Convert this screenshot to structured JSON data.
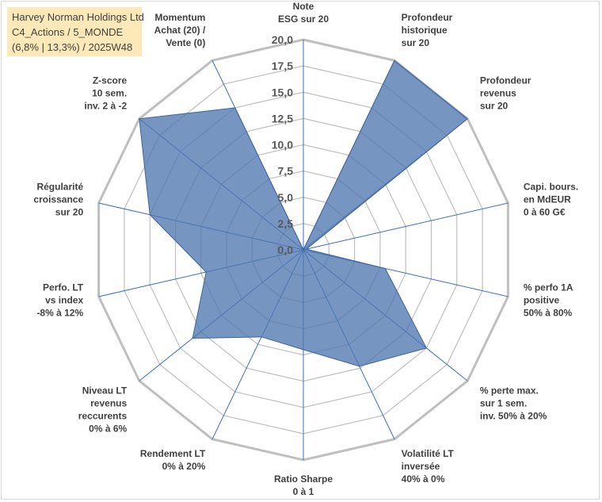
{
  "header": {
    "line1": "Harvey Norman Holdings Ltd",
    "line2": "C4_Actions / 5_MONDE",
    "line3": "(6,8% | 13,3%) / 2025W48"
  },
  "chart_data": {
    "type": "radar",
    "scale_max": 20,
    "ticks": [
      "0,0",
      "2,5",
      "5,0",
      "7,5",
      "10,0",
      "12,5",
      "15,0",
      "17,5",
      "20,0"
    ],
    "axes": [
      {
        "lines": [
          "Note",
          "ESG sur 20"
        ]
      },
      {
        "lines": [
          "Profondeur",
          "historique",
          "sur 20"
        ]
      },
      {
        "lines": [
          "Profondeur",
          "revenus",
          "sur 20"
        ]
      },
      {
        "lines": [
          "Capi. bours.",
          "en MdEUR",
          "0 à 60 G€"
        ]
      },
      {
        "lines": [
          "% perfo 1A",
          "positive",
          "50% à 80%"
        ]
      },
      {
        "lines": [
          "% perte max.",
          "sur 1 sem.",
          "inv. 50% à 20%"
        ]
      },
      {
        "lines": [
          "Volatilité LT",
          "inversée",
          "40% à 0%"
        ]
      },
      {
        "lines": [
          "Ratio Sharpe",
          "0 à 1"
        ]
      },
      {
        "lines": [
          "Rendement LT",
          "0% à 20%"
        ]
      },
      {
        "lines": [
          "Niveau LT",
          "revenus",
          "reccurents",
          "0% à 6%"
        ]
      },
      {
        "lines": [
          "Perfo. LT",
          "vs index",
          "-8% à 12%"
        ]
      },
      {
        "lines": [
          "Régularité",
          "croissance",
          "sur 20"
        ]
      },
      {
        "lines": [
          "Z-score",
          "10 sem.",
          "inv. 2 à -2"
        ]
      },
      {
        "lines": [
          "Momentum",
          "Achat (20) /",
          "Vente (0)"
        ]
      }
    ],
    "series": [
      {
        "values": [
          0.0,
          20.0,
          20.0,
          0.3,
          8.0,
          15.0,
          12.3,
          9.5,
          9.2,
          13.5,
          9.5,
          15.0,
          20.0,
          15.0
        ]
      }
    ],
    "colors": {
      "fill": "#4f77b0",
      "stroke": "#3d639d",
      "grid": "#bfbfbf",
      "spoke": "#3a6fc4"
    }
  }
}
